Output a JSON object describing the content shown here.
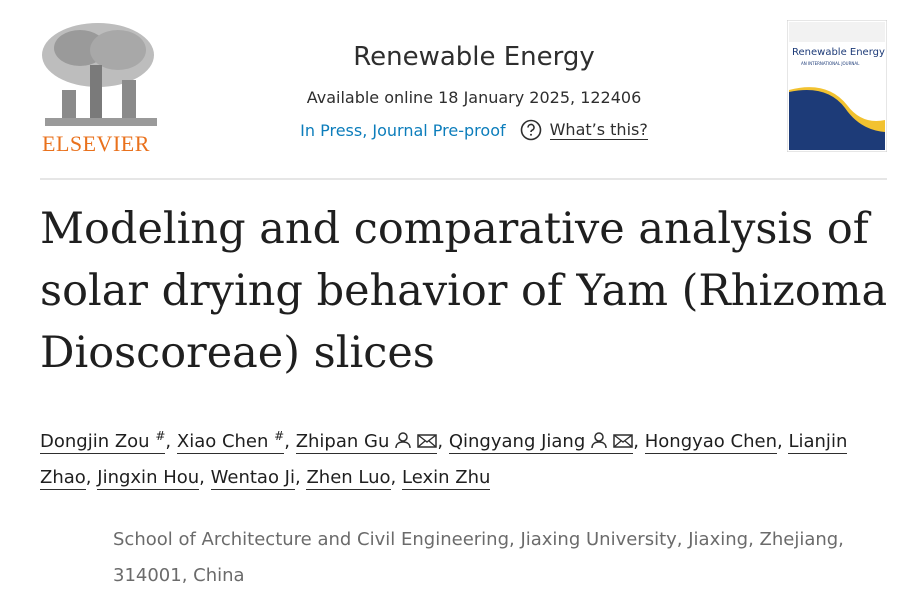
{
  "header": {
    "publisher": "ELSEVIER",
    "journal": "Renewable Energy",
    "available": "Available online 18 January 2025, 122406",
    "status": "In Press, Journal Pre-proof",
    "help": "What’s this?",
    "cover": {
      "title": "Renewable Energy",
      "subtitle": "AN INTERNATIONAL JOURNAL"
    }
  },
  "article": {
    "title": "Modeling and comparative analysis of solar drying behavior of Yam (Rhizoma Dioscoreae) slices",
    "separator": ",",
    "authors": [
      {
        "name": "Dongjin Zou",
        "mark": "#"
      },
      {
        "name": "Xiao Chen",
        "mark": "#"
      },
      {
        "name": "Zhipan Gu",
        "corresponding": true
      },
      {
        "name": "Qingyang Jiang",
        "corresponding": true
      },
      {
        "name": "Hongyao Chen"
      },
      {
        "name": "Lianjin Zhao"
      },
      {
        "name": "Jingxin Hou"
      },
      {
        "name": "Wentao Ji"
      },
      {
        "name": "Zhen Luo"
      },
      {
        "name": "Lexin Zhu"
      }
    ],
    "affiliation": "School of Architecture and Civil Engineering, Jiaxing University, Jiaxing, Zhejiang, 314001, China"
  }
}
